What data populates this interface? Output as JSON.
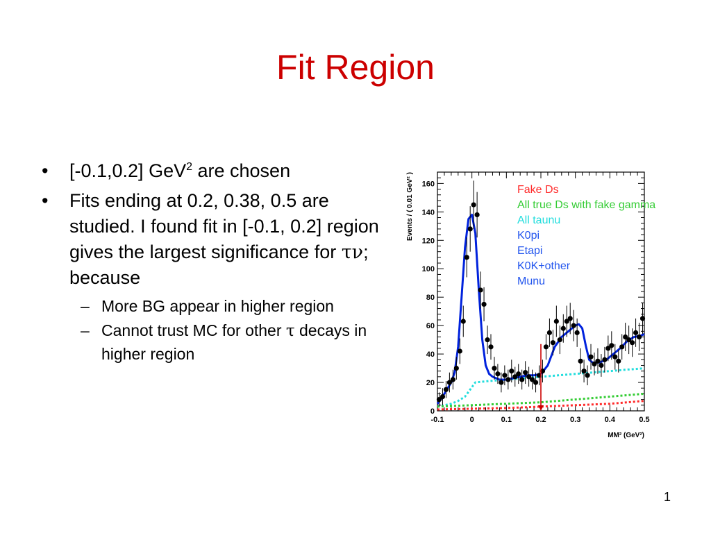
{
  "slide": {
    "title": "Fit Region",
    "page_number": "1"
  },
  "bullets": [
    {
      "parts": [
        "[-0.1,0.2] GeV",
        "2",
        " are chosen"
      ]
    },
    {
      "parts": [
        "Fits ending at 0.2, 0.38, 0.5 are studied. I found fit in [-0.1, 0.2] region gives the largest significance for ",
        "τν",
        "; because"
      ],
      "sub": [
        {
          "parts": [
            "More BG appear in higher region"
          ]
        },
        {
          "parts": [
            "Cannot trust MC for other ",
            "τ",
            " decays in higher region"
          ]
        }
      ]
    }
  ],
  "chart_data": {
    "type": "scatter",
    "xlabel": "MM² (GeV²)",
    "ylabel": "Events / ( 0.01 GeV² )",
    "xlim": [
      -0.1,
      0.5
    ],
    "ylim": [
      0,
      168
    ],
    "x_ticks": [
      "-0.1",
      "0",
      "0.1",
      "0.2",
      "0.3",
      "0.4",
      "0.5"
    ],
    "y_ticks": [
      "0",
      "20",
      "40",
      "60",
      "80",
      "100",
      "120",
      "140",
      "160"
    ],
    "legend": {
      "placement": "top-right",
      "entries": [
        {
          "label": "Fake Ds",
          "color": "#ff2a2a"
        },
        {
          "label": "All true Ds with fake gamma",
          "color": "#33cc33"
        },
        {
          "label": "All taunu",
          "color": "#22dddd"
        },
        {
          "label": "K0pi",
          "color": "#2255ee"
        },
        {
          "label": "Etapi",
          "color": "#2255ee"
        },
        {
          "label": "K0K+other",
          "color": "#2255ee"
        },
        {
          "label": "Munu",
          "color": "#2255ee"
        }
      ]
    },
    "data_points": {
      "x": [
        -0.095,
        -0.085,
        -0.075,
        -0.065,
        -0.055,
        -0.045,
        -0.035,
        -0.025,
        -0.015,
        -0.005,
        0.005,
        0.015,
        0.025,
        0.035,
        0.045,
        0.055,
        0.065,
        0.075,
        0.085,
        0.095,
        0.105,
        0.115,
        0.125,
        0.135,
        0.145,
        0.155,
        0.165,
        0.175,
        0.185,
        0.195,
        0.205,
        0.215,
        0.225,
        0.235,
        0.245,
        0.255,
        0.265,
        0.275,
        0.285,
        0.295,
        0.305,
        0.315,
        0.325,
        0.335,
        0.345,
        0.355,
        0.365,
        0.375,
        0.385,
        0.395,
        0.405,
        0.415,
        0.425,
        0.435,
        0.445,
        0.455,
        0.465,
        0.475,
        0.485,
        0.495
      ],
      "y": [
        8,
        10,
        15,
        20,
        22,
        30,
        42,
        63,
        108,
        128,
        145,
        138,
        85,
        75,
        50,
        45,
        30,
        26,
        20,
        25,
        22,
        28,
        24,
        26,
        22,
        27,
        24,
        22,
        20,
        25,
        28,
        45,
        55,
        48,
        63,
        50,
        58,
        63,
        65,
        60,
        55,
        35,
        28,
        25,
        38,
        33,
        35,
        32,
        36,
        44,
        46,
        38,
        35,
        45,
        52,
        50,
        48,
        55,
        52,
        65
      ],
      "err": [
        5,
        6,
        6,
        7,
        7,
        8,
        9,
        11,
        14,
        16,
        17,
        16,
        13,
        12,
        10,
        9,
        8,
        7,
        7,
        7,
        7,
        8,
        7,
        7,
        7,
        8,
        7,
        7,
        7,
        7,
        8,
        9,
        10,
        9,
        11,
        10,
        10,
        11,
        11,
        11,
        10,
        9,
        8,
        7,
        9,
        8,
        9,
        8,
        9,
        9,
        10,
        9,
        8,
        9,
        10,
        10,
        10,
        10,
        10,
        11
      ]
    },
    "series": [
      {
        "name": "Fit total",
        "color": "#0022dd",
        "x": [
          -0.1,
          -0.09,
          -0.08,
          -0.07,
          -0.06,
          -0.05,
          -0.04,
          -0.03,
          -0.02,
          -0.01,
          0,
          0.01,
          0.02,
          0.03,
          0.04,
          0.05,
          0.06,
          0.08,
          0.1,
          0.12,
          0.14,
          0.16,
          0.18,
          0.2,
          0.22,
          0.24,
          0.26,
          0.28,
          0.29,
          0.3,
          0.31,
          0.32,
          0.33,
          0.34,
          0.35,
          0.37,
          0.39,
          0.41,
          0.43,
          0.45,
          0.47,
          0.49,
          0.5
        ],
        "y": [
          5,
          8,
          12,
          16,
          20,
          27,
          45,
          80,
          115,
          135,
          138,
          125,
          85,
          50,
          32,
          26,
          24,
          22,
          22,
          23,
          24,
          25,
          25,
          26,
          32,
          45,
          52,
          56,
          58,
          60,
          61,
          58,
          46,
          36,
          34,
          34,
          36,
          40,
          44,
          49,
          52,
          53,
          54
        ]
      },
      {
        "name": "All taunu",
        "color": "#22dddd",
        "x": [
          -0.1,
          -0.08,
          -0.06,
          -0.04,
          -0.02,
          -0.005,
          0.01,
          0.05,
          0.1,
          0.15,
          0.2,
          0.25,
          0.3,
          0.35,
          0.4,
          0.45,
          0.5
        ],
        "y": [
          3,
          4,
          5,
          7,
          10,
          15,
          20,
          21,
          22,
          23,
          24,
          25,
          26,
          27,
          28,
          29,
          30
        ]
      },
      {
        "name": "All true Ds with fake gamma",
        "color": "#33cc33",
        "x": [
          -0.1,
          0,
          0.1,
          0.2,
          0.3,
          0.4,
          0.5
        ],
        "y": [
          3,
          4,
          5,
          6,
          8,
          10,
          12
        ]
      },
      {
        "name": "Fake Ds",
        "color": "#ff2a2a",
        "x": [
          -0.1,
          0,
          0.1,
          0.2,
          0.3,
          0.4,
          0.5
        ],
        "y": [
          1,
          1.5,
          2,
          3,
          4,
          5,
          7
        ]
      }
    ],
    "marker_line": {
      "x": 0.2,
      "y_top": 47,
      "color": "#cc0000"
    }
  }
}
